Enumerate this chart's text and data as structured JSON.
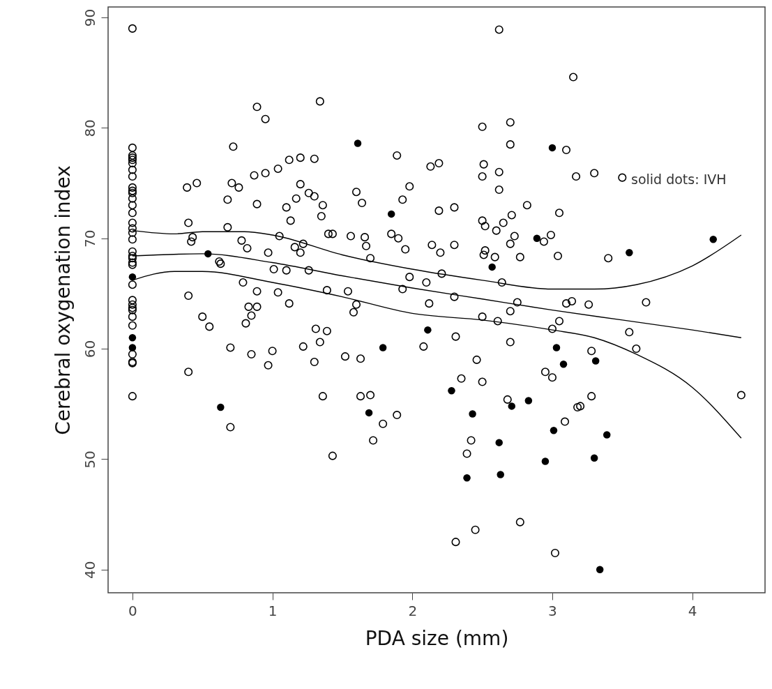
{
  "chart_data": {
    "type": "scatter",
    "xlabel": "PDA size (mm)",
    "ylabel": "Cerebral oxygenation index",
    "annotations": [
      "solid dots: IVH"
    ],
    "xlim": [
      -0.174,
      4.52
    ],
    "ylim": [
      37.9,
      90.95
    ],
    "xticks": [
      0,
      1,
      2,
      3,
      4
    ],
    "yticks": [
      40,
      50,
      60,
      70,
      80,
      90
    ],
    "grid": false,
    "marker": "circle",
    "series": [
      {
        "color": "#000000",
        "x": [
          0,
          0,
          0,
          0,
          0,
          0,
          0,
          0,
          0,
          0,
          0,
          0,
          0,
          0,
          0,
          0,
          0,
          0,
          0,
          0,
          0,
          0,
          0,
          0,
          0,
          0,
          0,
          0,
          0,
          0,
          0,
          0,
          0,
          0,
          0.89,
          0.95,
          1.34,
          0.72,
          1.89,
          2.13,
          2.19,
          1.12,
          1.2,
          1.3,
          0.87,
          0.95,
          1.04,
          0.39,
          0.46,
          0.71,
          0.76,
          0.68,
          0.89,
          1.2,
          1.26,
          1.3,
          1.17,
          1.36,
          1.1,
          1.35,
          1.13,
          1.6,
          1.64,
          1.98,
          1.93,
          2.19,
          0.4,
          0.68,
          0.43,
          0.42,
          1.05,
          0.78,
          0.82,
          0.97,
          1.16,
          1.22,
          1.2,
          1.4,
          1.43,
          1.56,
          1.66,
          1.67,
          1.85,
          1.9,
          1.95,
          2.14,
          1.7,
          0.62,
          0.63,
          1.01,
          1.1,
          1.26,
          1.98,
          2.1,
          1.93,
          2.21,
          0.79,
          0.4,
          0.89,
          1.04,
          1.39,
          1.54,
          1.12,
          1.6,
          2.12,
          0.83,
          0.89,
          0.5,
          0.55,
          0.81,
          0.85,
          0.7,
          0.85,
          1.0,
          0.97,
          0.4,
          0.7,
          1.22,
          1.31,
          1.39,
          1.34,
          1.3,
          1.52,
          1.63,
          1.58,
          2.08,
          1.36,
          1.63,
          1.7,
          1.79,
          1.89,
          1.72,
          1.43,
          2.62,
          3.15,
          2.5,
          2.7,
          2.7,
          3.1,
          2.51,
          2.5,
          2.62,
          2.62,
          3.17,
          3.3,
          3.5,
          2.3,
          2.82,
          3.05,
          2.5,
          2.52,
          2.6,
          2.65,
          2.71,
          2.73,
          2.7,
          2.99,
          2.94,
          2.2,
          2.3,
          2.52,
          2.51,
          2.59,
          2.77,
          3.04,
          3.4,
          2.64,
          2.3,
          2.75,
          3.1,
          3.14,
          3.26,
          3.67,
          2.5,
          2.61,
          2.7,
          3.05,
          3.0,
          3.55,
          3.6,
          2.31,
          2.7,
          2.46,
          3.28,
          2.35,
          2.5,
          2.95,
          3.0,
          2.68,
          3.28,
          3.18,
          3.2,
          3.09,
          2.42,
          2.39,
          4.35,
          2.77,
          2.45,
          2.31,
          3.02
        ],
        "values": [
          89,
          78.2,
          77.5,
          77.3,
          77.1,
          76.8,
          76.2,
          75.6,
          74.6,
          74.3,
          74.1,
          73.6,
          73.0,
          72.3,
          71.4,
          70.9,
          70.5,
          69.9,
          68.8,
          68.4,
          68.2,
          67.8,
          67.6,
          65.8,
          64.4,
          64.0,
          63.7,
          63.5,
          62.9,
          62.1,
          59.5,
          58.8,
          58.7,
          55.7,
          81.9,
          80.8,
          82.4,
          78.3,
          77.5,
          76.5,
          76.8,
          77.1,
          77.3,
          77.2,
          75.7,
          75.9,
          76.3,
          74.6,
          75.0,
          75.0,
          74.6,
          73.5,
          73.1,
          74.9,
          74.1,
          73.8,
          73.6,
          73.0,
          72.8,
          72.0,
          71.6,
          74.2,
          73.2,
          74.7,
          73.5,
          72.5,
          71.4,
          71.0,
          70.1,
          69.7,
          70.2,
          69.8,
          69.1,
          68.7,
          69.2,
          69.5,
          68.7,
          70.4,
          70.4,
          70.2,
          70.1,
          69.3,
          70.4,
          70.0,
          69.0,
          69.4,
          68.2,
          67.9,
          67.7,
          67.2,
          67.1,
          67.1,
          66.5,
          66.0,
          65.4,
          66.8,
          66.0,
          64.8,
          65.2,
          65.1,
          65.3,
          65.2,
          64.1,
          64.0,
          64.1,
          63.8,
          63.8,
          62.9,
          62.0,
          62.3,
          63.0,
          60.1,
          59.5,
          59.8,
          58.5,
          57.9,
          52.9,
          60.2,
          61.8,
          61.6,
          60.6,
          58.8,
          59.3,
          59.1,
          63.3,
          60.2,
          55.7,
          55.7,
          55.8,
          53.2,
          54.0,
          51.7,
          50.3,
          88.9,
          84.6,
          80.1,
          80.5,
          78.5,
          78.0,
          76.7,
          75.6,
          76.0,
          74.4,
          75.6,
          75.9,
          75.5,
          72.8,
          73.0,
          72.3,
          71.6,
          71.1,
          70.7,
          71.4,
          72.1,
          70.2,
          69.5,
          70.3,
          69.7,
          68.7,
          69.4,
          68.9,
          68.5,
          68.3,
          68.3,
          68.4,
          68.2,
          66.0,
          64.7,
          64.2,
          64.1,
          64.3,
          64.0,
          64.2,
          62.9,
          62.5,
          63.4,
          62.5,
          61.8,
          61.5,
          60.0,
          61.1,
          60.6,
          59.0,
          59.8,
          57.3,
          57.0,
          57.9,
          57.4,
          55.4,
          55.7,
          54.7,
          54.8,
          53.4,
          51.7,
          50.5,
          55.8,
          44.3,
          43.6,
          42.5,
          41.5
        ]
      },
      {
        "color": "#000000",
        "x": [
          0,
          0,
          0,
          1.61,
          1.85,
          0.54,
          0.63,
          1.79,
          1.69,
          2.11,
          3.0,
          2.89,
          3.55,
          4.15,
          2.57,
          3.03,
          3.08,
          3.31,
          2.28,
          2.71,
          2.83,
          2.43,
          3.01,
          3.39,
          2.62,
          2.95,
          3.3,
          2.39,
          2.63,
          3.34
        ],
        "values": [
          66.5,
          61.0,
          60.1,
          78.6,
          72.2,
          68.6,
          54.7,
          60.1,
          54.2,
          61.7,
          78.2,
          70.0,
          68.7,
          69.9,
          67.4,
          60.1,
          58.6,
          58.9,
          56.2,
          54.8,
          55.3,
          54.1,
          52.6,
          52.2,
          51.5,
          49.8,
          50.1,
          48.3,
          48.6,
          40.0
        ]
      },
      {
        "type": "line",
        "color": "#000000",
        "line_style": "solid",
        "marker": "none",
        "x": [
          0,
          0.3,
          0.5,
          0.8,
          1.0,
          1.5,
          2.0,
          2.5,
          3.0,
          3.3,
          3.6,
          4.0,
          4.35
        ],
        "values": [
          70.7,
          70.4,
          70.6,
          70.6,
          70.3,
          68.5,
          67.2,
          66.2,
          65.4,
          65.4,
          65.8,
          67.5,
          70.3
        ]
      },
      {
        "type": "line",
        "color": "#000000",
        "line_style": "solid",
        "marker": "none",
        "x": [
          0,
          0.5,
          1.0,
          1.5,
          2.0,
          2.5,
          3.0,
          3.5,
          4.0,
          4.35
        ],
        "values": [
          68.4,
          68.6,
          67.8,
          66.6,
          65.5,
          64.5,
          63.5,
          62.6,
          61.7,
          61.0
        ]
      },
      {
        "type": "line",
        "color": "#000000",
        "line_style": "solid",
        "marker": "none",
        "x": [
          0,
          0.3,
          0.5,
          1.0,
          1.5,
          2.0,
          2.5,
          3.0,
          3.3,
          3.6,
          4.0,
          4.35
        ],
        "values": [
          66.2,
          67.0,
          67.0,
          66.0,
          64.7,
          63.2,
          62.6,
          61.7,
          61.0,
          59.5,
          56.5,
          51.9
        ]
      }
    ]
  }
}
